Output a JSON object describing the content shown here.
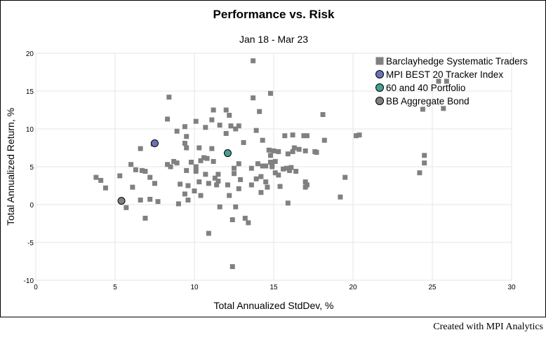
{
  "chart_data": {
    "type": "scatter",
    "title": "Performance vs. Risk",
    "subtitle": "Jan 18 - Mar 23",
    "xlabel": "Total Annualized StdDev, %",
    "ylabel": "Total Annualized Return, %",
    "xlim": [
      0,
      30
    ],
    "ylim": [
      -10,
      20
    ],
    "xticks": [
      "0",
      "5",
      "10",
      "15",
      "20",
      "25",
      "30"
    ],
    "yticks": [
      "20",
      "15",
      "10",
      "5",
      "0",
      "-5",
      "-10"
    ],
    "grid": true,
    "legend_position": "top-right",
    "series": [
      {
        "name": "Barclayhedge Systematic Traders",
        "marker": "square",
        "color": "#808080",
        "points": [
          [
            3.8,
            3.6
          ],
          [
            4.1,
            3.2
          ],
          [
            4.4,
            2.2
          ],
          [
            5.3,
            3.8
          ],
          [
            5.7,
            -0.4
          ],
          [
            6.1,
            2.3
          ],
          [
            6.0,
            5.3
          ],
          [
            6.3,
            4.6
          ],
          [
            6.6,
            7.4
          ],
          [
            6.6,
            0.6
          ],
          [
            6.7,
            4.5
          ],
          [
            6.9,
            -1.8
          ],
          [
            6.9,
            4.4
          ],
          [
            7.2,
            3.6
          ],
          [
            7.2,
            0.7
          ],
          [
            7.4,
            8.0
          ],
          [
            7.5,
            2.8
          ],
          [
            7.7,
            0.4
          ],
          [
            8.3,
            11.3
          ],
          [
            8.4,
            14.2
          ],
          [
            8.3,
            5.3
          ],
          [
            8.5,
            5.0
          ],
          [
            8.7,
            5.7
          ],
          [
            8.9,
            5.5
          ],
          [
            8.9,
            9.7
          ],
          [
            9.1,
            2.7
          ],
          [
            9.0,
            0.1
          ],
          [
            9.4,
            8.1
          ],
          [
            9.4,
            1.4
          ],
          [
            9.5,
            9.0
          ],
          [
            9.5,
            7.5
          ],
          [
            9.4,
            10.3
          ],
          [
            9.5,
            4.5
          ],
          [
            9.6,
            2.5
          ],
          [
            9.6,
            0.6
          ],
          [
            9.8,
            5.6
          ],
          [
            10.0,
            1.8
          ],
          [
            10.1,
            11.0
          ],
          [
            10.1,
            5.0
          ],
          [
            10.1,
            4.4
          ],
          [
            10.3,
            3.0
          ],
          [
            10.3,
            7.5
          ],
          [
            10.4,
            5.8
          ],
          [
            10.4,
            1.2
          ],
          [
            10.6,
            6.2
          ],
          [
            10.7,
            4.0
          ],
          [
            10.7,
            10.2
          ],
          [
            10.8,
            6.1
          ],
          [
            10.9,
            -3.8
          ],
          [
            10.9,
            2.8
          ],
          [
            11.1,
            11.2
          ],
          [
            11.1,
            7.4
          ],
          [
            11.2,
            12.5
          ],
          [
            11.2,
            5.7
          ],
          [
            11.3,
            3.5
          ],
          [
            11.4,
            2.6
          ],
          [
            11.5,
            3.1
          ],
          [
            11.5,
            4.0
          ],
          [
            11.6,
            10.5
          ],
          [
            11.6,
            -0.3
          ],
          [
            12.0,
            12.5
          ],
          [
            12.0,
            9.4
          ],
          [
            12.1,
            2.6
          ],
          [
            12.2,
            11.8
          ],
          [
            12.2,
            1.2
          ],
          [
            12.3,
            10.4
          ],
          [
            12.4,
            -8.2
          ],
          [
            12.4,
            -2.0
          ],
          [
            12.5,
            4.8
          ],
          [
            12.5,
            4.1
          ],
          [
            12.6,
            10.0
          ],
          [
            12.6,
            -0.3
          ],
          [
            12.8,
            10.4
          ],
          [
            12.9,
            3.3
          ],
          [
            12.8,
            5.4
          ],
          [
            12.8,
            2.1
          ],
          [
            13.1,
            8.2
          ],
          [
            13.2,
            -1.8
          ],
          [
            13.4,
            -2.4
          ],
          [
            13.6,
            2.6
          ],
          [
            13.6,
            4.8
          ],
          [
            13.7,
            19.0
          ],
          [
            13.7,
            14.1
          ],
          [
            13.9,
            3.4
          ],
          [
            13.9,
            9.8
          ],
          [
            14.0,
            5.4
          ],
          [
            14.1,
            12.3
          ],
          [
            14.2,
            3.7
          ],
          [
            14.3,
            8.5
          ],
          [
            14.2,
            1.6
          ],
          [
            14.3,
            5.1
          ],
          [
            14.5,
            5.1
          ],
          [
            14.5,
            3.0
          ],
          [
            14.6,
            2.3
          ],
          [
            14.7,
            7.2
          ],
          [
            14.8,
            14.7
          ],
          [
            14.8,
            6.5
          ],
          [
            14.8,
            5.6
          ],
          [
            14.9,
            5.3
          ],
          [
            14.9,
            5.0
          ],
          [
            15.0,
            7.1
          ],
          [
            15.1,
            5.7
          ],
          [
            15.1,
            4.2
          ],
          [
            15.3,
            3.9
          ],
          [
            15.3,
            7.0
          ],
          [
            15.4,
            2.4
          ],
          [
            15.6,
            4.7
          ],
          [
            15.7,
            9.1
          ],
          [
            15.8,
            4.8
          ],
          [
            15.9,
            0.2
          ],
          [
            15.9,
            6.7
          ],
          [
            16.0,
            4.5
          ],
          [
            16.1,
            4.9
          ],
          [
            16.2,
            9.2
          ],
          [
            16.2,
            7.0
          ],
          [
            16.3,
            7.5
          ],
          [
            16.4,
            4.4
          ],
          [
            16.6,
            7.3
          ],
          [
            16.9,
            9.1
          ],
          [
            17.0,
            7.1
          ],
          [
            17.0,
            3.0
          ],
          [
            17.0,
            2.3
          ],
          [
            17.1,
            9.1
          ],
          [
            17.1,
            2.6
          ],
          [
            17.6,
            7.0
          ],
          [
            17.7,
            6.9
          ],
          [
            18.1,
            11.9
          ],
          [
            18.2,
            8.5
          ],
          [
            19.2,
            1.0
          ],
          [
            19.5,
            3.6
          ],
          [
            20.2,
            9.1
          ],
          [
            20.4,
            9.2
          ],
          [
            24.2,
            4.2
          ],
          [
            24.4,
            12.6
          ],
          [
            24.5,
            6.5
          ],
          [
            24.5,
            5.5
          ],
          [
            25.4,
            16.3
          ],
          [
            25.7,
            12.7
          ],
          [
            25.9,
            16.3
          ]
        ]
      },
      {
        "name": "MPI BEST 20 Tracker Index",
        "marker": "circle",
        "color": "#6b72b8",
        "points": [
          [
            7.5,
            8.1
          ]
        ]
      },
      {
        "name": "60 and 40 Portfolio",
        "marker": "circle",
        "color": "#45a090",
        "points": [
          [
            12.1,
            6.8
          ]
        ]
      },
      {
        "name": "BB Aggregate Bond",
        "marker": "circle",
        "color": "#808080",
        "points": [
          [
            5.4,
            0.5
          ]
        ]
      }
    ]
  },
  "footer": {
    "credit": "Created with MPI Analytics"
  }
}
